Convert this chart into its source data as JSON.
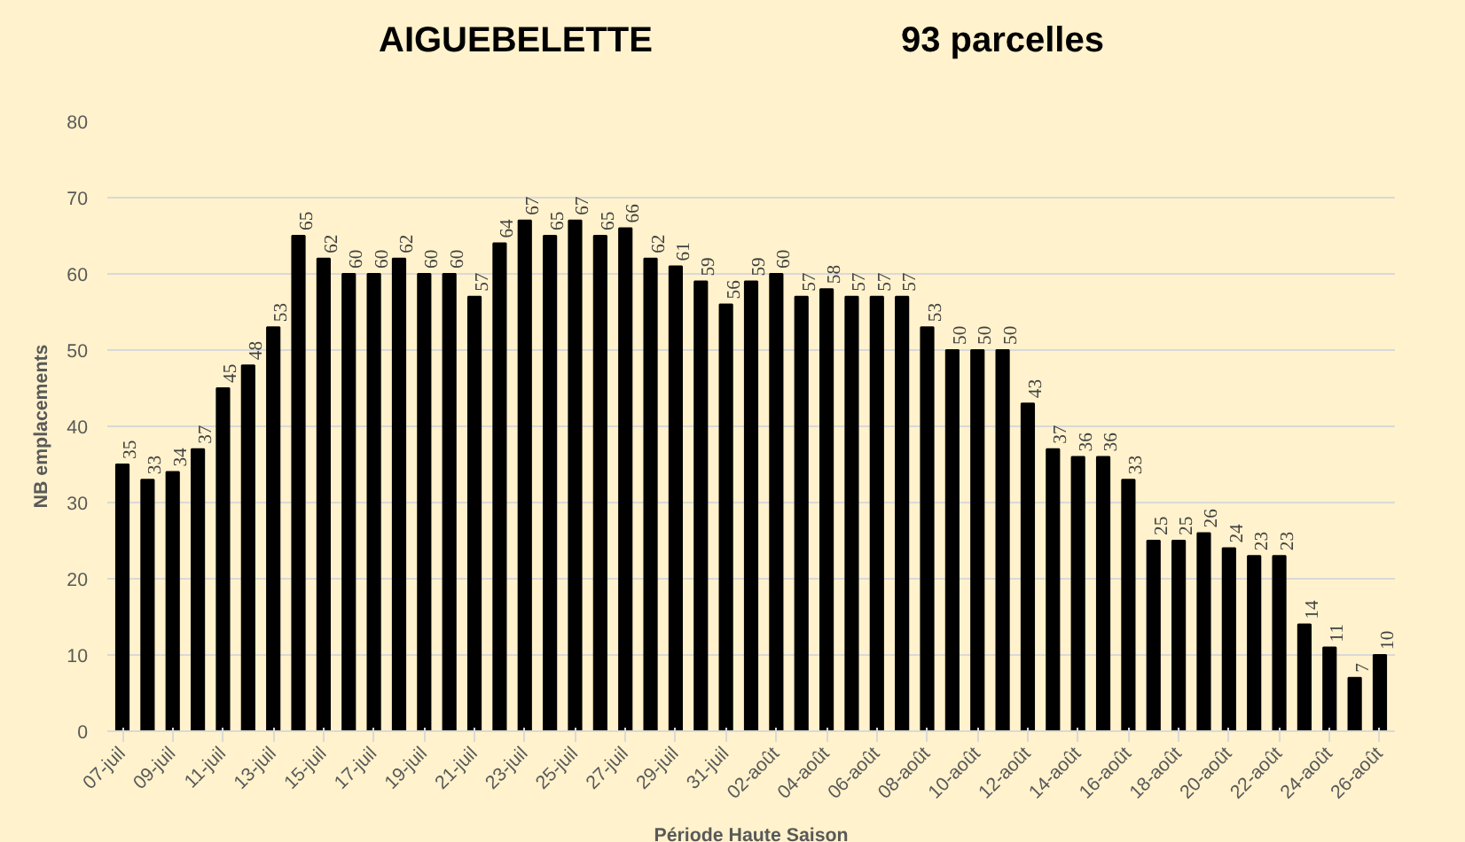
{
  "chart_data": {
    "type": "bar",
    "title": "AIGUEBELETTE",
    "subtitle": "93 parcelles",
    "xlabel": "Période Haute Saison",
    "ylabel": "NB emplacements",
    "categories": [
      "07-juil",
      null,
      "09-juil",
      null,
      "11-juil",
      null,
      "13-juil",
      null,
      "15-juil",
      null,
      "17-juil",
      null,
      "19-juil",
      null,
      "21-juil",
      null,
      "23-juil",
      null,
      "25-juil",
      null,
      "27-juil",
      null,
      "29-juil",
      null,
      "31-juil",
      null,
      "02-août",
      null,
      "04-août",
      null,
      "06-août",
      null,
      "08-août",
      null,
      "10-août",
      null,
      "12-août",
      null,
      "14-août",
      null,
      "16-août",
      null,
      "18-août",
      null,
      "20-août",
      null,
      "22-août",
      null,
      "24-août",
      null,
      "26-août"
    ],
    "values": [
      35,
      33,
      34,
      37,
      45,
      48,
      53,
      65,
      62,
      60,
      60,
      62,
      60,
      60,
      57,
      64,
      67,
      65,
      67,
      65,
      66,
      62,
      61,
      59,
      56,
      59,
      60,
      57,
      58,
      57,
      57,
      57,
      53,
      50,
      50,
      50,
      43,
      37,
      36,
      36,
      33,
      25,
      25,
      26,
      24,
      23,
      23,
      14,
      11,
      7,
      10
    ],
    "color": "#000000",
    "ylim": [
      0,
      80
    ],
    "yticks": [
      0,
      10,
      20,
      30,
      40,
      50,
      60,
      70,
      80
    ],
    "grid": "y",
    "data_labels": true
  }
}
